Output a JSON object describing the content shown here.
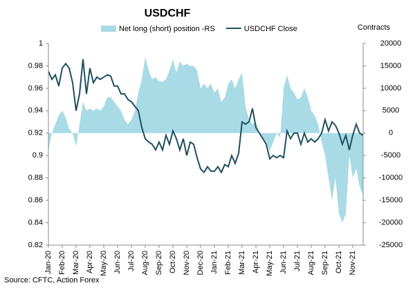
{
  "chart_data": {
    "type": "line",
    "title": "USDCHF",
    "y2_label": "Contracts",
    "source": "Source: CFTC, Action Forex",
    "categories": [
      "Jan-20",
      null,
      null,
      null,
      "Feb-20",
      null,
      null,
      null,
      "Mar-20",
      null,
      null,
      null,
      "Apr-20",
      null,
      null,
      null,
      "May-20",
      null,
      null,
      null,
      "Jun-20",
      null,
      null,
      null,
      "Jul-20",
      null,
      null,
      null,
      "Aug-20",
      null,
      null,
      null,
      "Sep-20",
      null,
      null,
      null,
      "Oct-20",
      null,
      null,
      null,
      "Nov-20",
      null,
      null,
      null,
      "Dec-20",
      null,
      null,
      null,
      "Jan-21",
      null,
      null,
      null,
      "Feb-21",
      null,
      null,
      null,
      "Mar-21",
      null,
      null,
      null,
      "Apr-21",
      null,
      null,
      null,
      "May-21",
      null,
      null,
      null,
      "Jun-21",
      null,
      null,
      null,
      "Jul-21",
      null,
      null,
      null,
      "Aug-21",
      null,
      null,
      null,
      "Sep-21",
      null,
      null,
      null,
      "Oct-21",
      null,
      null,
      null,
      "Nov-21",
      null,
      null,
      null
    ],
    "series": [
      {
        "name": "Net long (short) position -RS",
        "type": "area",
        "axis": "y2",
        "color": "#a8dbe6",
        "values": [
          -4000,
          0,
          2000,
          4000,
          5000,
          3500,
          1000,
          0,
          -3000,
          2000,
          7000,
          5000,
          5500,
          5000,
          5500,
          5000,
          6000,
          8000,
          8000,
          7000,
          6000,
          5000,
          3000,
          2000,
          3000,
          5000,
          9000,
          12000,
          17000,
          14000,
          12000,
          12500,
          11500,
          11500,
          12000,
          14000,
          16500,
          13500,
          16000,
          15000,
          15500,
          15000,
          15000,
          14000,
          10000,
          11000,
          10000,
          11000,
          9000,
          10000,
          7000,
          8000,
          11000,
          12000,
          10000,
          12000,
          13500,
          6000,
          3000,
          2000,
          2500,
          0,
          -1000,
          -2000,
          -4000,
          -2000,
          0,
          -1000,
          10000,
          13000,
          10000,
          9000,
          7500,
          8000,
          10000,
          8000,
          5000,
          4000,
          2000,
          -2000,
          -5000,
          -10000,
          -15000,
          -10000,
          -18000,
          -20000,
          -18000,
          -5000,
          -10000,
          -8000,
          -12000,
          -14000
        ]
      },
      {
        "name": "USDCHF Close",
        "type": "line",
        "axis": "y",
        "color": "#1f4e5f",
        "values": [
          0.975,
          0.968,
          0.972,
          0.962,
          0.978,
          0.982,
          0.978,
          0.965,
          0.94,
          0.955,
          0.986,
          0.955,
          0.978,
          0.965,
          0.97,
          0.968,
          0.97,
          0.972,
          0.971,
          0.962,
          0.962,
          0.955,
          0.955,
          0.95,
          0.948,
          0.944,
          0.94,
          0.925,
          0.915,
          0.912,
          0.91,
          0.905,
          0.912,
          0.905,
          0.918,
          0.91,
          0.922,
          0.915,
          0.905,
          0.915,
          0.9,
          0.912,
          0.91,
          0.898,
          0.888,
          0.885,
          0.89,
          0.886,
          0.886,
          0.89,
          0.885,
          0.892,
          0.89,
          0.9,
          0.893,
          0.902,
          0.93,
          0.928,
          0.93,
          0.942,
          0.925,
          0.92,
          0.915,
          0.91,
          0.897,
          0.9,
          0.898,
          0.9,
          0.898,
          0.922,
          0.915,
          0.92,
          0.92,
          0.91,
          0.92,
          0.912,
          0.915,
          0.912,
          0.915,
          0.92,
          0.932,
          0.922,
          0.93,
          0.927,
          0.92,
          0.91,
          0.918,
          0.905,
          0.918,
          0.928,
          0.92,
          0.918
        ]
      }
    ],
    "ylim": [
      0.82,
      1
    ],
    "yticks": [
      0.82,
      0.84,
      0.86,
      0.88,
      0.9,
      0.92,
      0.94,
      0.96,
      0.98,
      1
    ],
    "y2lim": [
      -25000,
      20000
    ],
    "y2ticks": [
      -25000,
      -20000,
      -15000,
      -10000,
      -5000,
      0,
      5000,
      10000,
      15000,
      20000
    ]
  }
}
